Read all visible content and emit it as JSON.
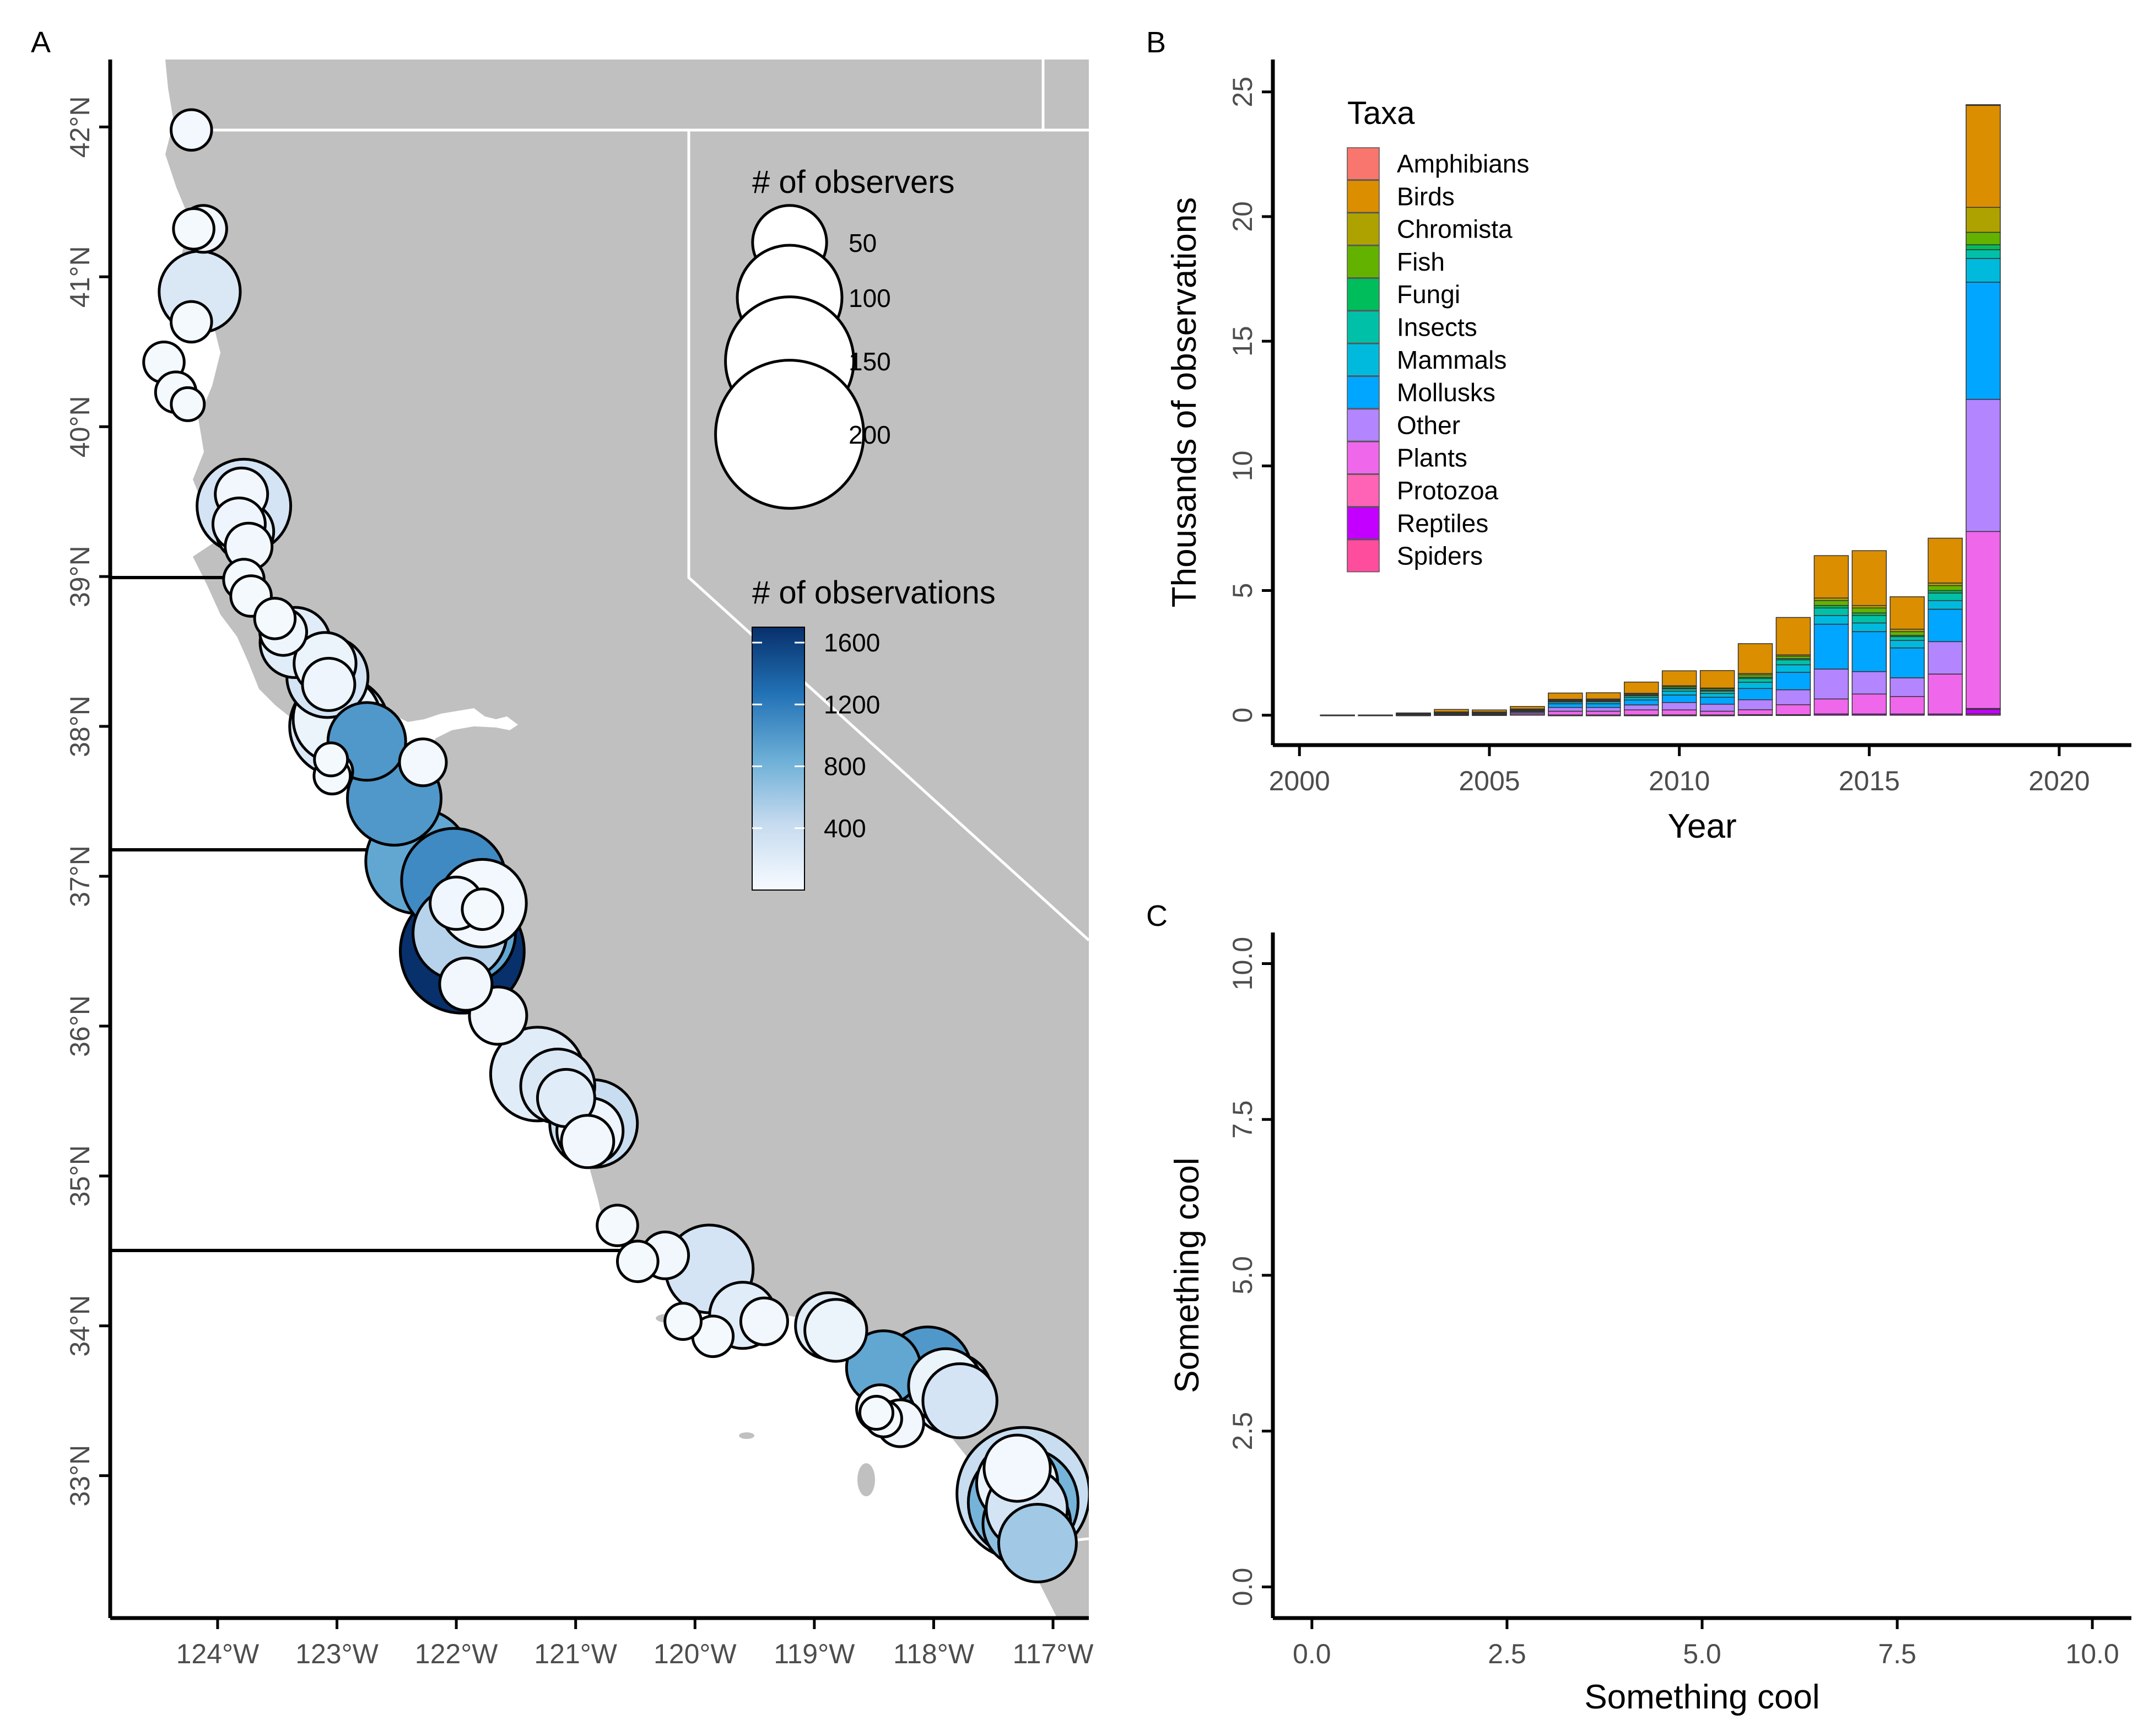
{
  "panel_labels": {
    "a": "A",
    "b": "B",
    "c": "C"
  },
  "colors": {
    "land": "#c0c0c0",
    "border": "#ffffff",
    "axis": "#000000",
    "tick_text": "#4d4d4d",
    "obs_low": "#f5f9fe",
    "obs_mid": "#6baed6",
    "obs_high": "#08306b"
  },
  "map": {
    "lon_ticks": [
      "124°W",
      "123°W",
      "122°W",
      "121°W",
      "120°W",
      "119°W",
      "118°W",
      "117°W"
    ],
    "lat_ticks": [
      "42°N",
      "41°N",
      "40°N",
      "39°N",
      "38°N",
      "37°N",
      "36°N",
      "35°N",
      "34°N",
      "33°N"
    ],
    "lon_range": [
      -124.9,
      -116.7
    ],
    "lat_range": [
      32.05,
      42.45
    ],
    "size_legend": {
      "title": "# of observers",
      "entries": [
        {
          "label": "50",
          "value": 50
        },
        {
          "label": "100",
          "value": 100
        },
        {
          "label": "150",
          "value": 150
        },
        {
          "label": "200",
          "value": 200
        }
      ]
    },
    "color_legend": {
      "title": "# of observations",
      "labels": [
        "1600",
        "1200",
        "800",
        "400"
      ],
      "values": [
        1600,
        1200,
        800,
        400
      ],
      "max": 1700
    },
    "sites": [
      {
        "lon": -124.22,
        "lat": 41.98,
        "obs": 40,
        "n": 15
      },
      {
        "lon": -124.2,
        "lat": 41.32,
        "obs": 30,
        "n": 15
      },
      {
        "lon": -124.12,
        "lat": 41.32,
        "obs": 60,
        "n": 20
      },
      {
        "lon": -124.15,
        "lat": 40.9,
        "obs": 250,
        "n": 60
      },
      {
        "lon": -124.22,
        "lat": 40.7,
        "obs": 30,
        "n": 15
      },
      {
        "lon": -124.45,
        "lat": 40.43,
        "obs": 30,
        "n": 15
      },
      {
        "lon": -124.35,
        "lat": 40.23,
        "obs": 30,
        "n": 15
      },
      {
        "lon": -124.25,
        "lat": 40.15,
        "obs": 30,
        "n": 10
      },
      {
        "lon": -123.8,
        "lat": 39.55,
        "obs": 50,
        "n": 25
      },
      {
        "lon": -123.78,
        "lat": 39.47,
        "obs": 300,
        "n": 80
      },
      {
        "lon": -123.82,
        "lat": 39.35,
        "obs": 80,
        "n": 25
      },
      {
        "lon": -123.77,
        "lat": 39.3,
        "obs": 150,
        "n": 30
      },
      {
        "lon": -123.74,
        "lat": 39.2,
        "obs": 50,
        "n": 20
      },
      {
        "lon": -123.78,
        "lat": 38.98,
        "obs": 30,
        "n": 15
      },
      {
        "lon": -123.72,
        "lat": 38.87,
        "obs": 30,
        "n": 15
      },
      {
        "lon": -123.52,
        "lat": 38.72,
        "obs": 30,
        "n": 15
      },
      {
        "lon": -123.45,
        "lat": 38.63,
        "obs": 80,
        "n": 20
      },
      {
        "lon": -123.35,
        "lat": 38.56,
        "obs": 200,
        "n": 45
      },
      {
        "lon": -123.1,
        "lat": 38.42,
        "obs": 100,
        "n": 35
      },
      {
        "lon": -123.08,
        "lat": 38.33,
        "obs": 300,
        "n": 60
      },
      {
        "lon": -123.07,
        "lat": 38.28,
        "obs": 80,
        "n": 25
      },
      {
        "lon": -123.0,
        "lat": 38.05,
        "obs": 100,
        "n": 70
      },
      {
        "lon": -122.98,
        "lat": 38.0,
        "obs": 250,
        "n": 90
      },
      {
        "lon": -122.75,
        "lat": 37.9,
        "obs": 1000,
        "n": 55
      },
      {
        "lon": -122.28,
        "lat": 37.76,
        "obs": 40,
        "n": 20
      },
      {
        "lon": -123.05,
        "lat": 37.78,
        "obs": 30,
        "n": 10
      },
      {
        "lon": -123.02,
        "lat": 37.7,
        "obs": 30,
        "n": 12
      },
      {
        "lon": -123.04,
        "lat": 37.67,
        "obs": 30,
        "n": 12
      },
      {
        "lon": -122.52,
        "lat": 37.52,
        "obs": 1000,
        "n": 80
      },
      {
        "lon": -122.32,
        "lat": 37.1,
        "obs": 900,
        "n": 100
      },
      {
        "lon": -122.02,
        "lat": 36.97,
        "obs": 1100,
        "n": 100
      },
      {
        "lon": -121.78,
        "lat": 36.82,
        "obs": 40,
        "n": 70
      },
      {
        "lon": -121.78,
        "lat": 36.78,
        "obs": 30,
        "n": 15
      },
      {
        "lon": -122.0,
        "lat": 36.82,
        "obs": 60,
        "n": 25
      },
      {
        "lon": -121.97,
        "lat": 36.62,
        "obs": 500,
        "n": 80
      },
      {
        "lon": -121.92,
        "lat": 36.62,
        "obs": 900,
        "n": 90
      },
      {
        "lon": -121.95,
        "lat": 36.5,
        "obs": 1700,
        "n": 140
      },
      {
        "lon": -121.92,
        "lat": 36.28,
        "obs": 50,
        "n": 25
      },
      {
        "lon": -121.65,
        "lat": 36.07,
        "obs": 50,
        "n": 30
      },
      {
        "lon": -121.32,
        "lat": 35.68,
        "obs": 200,
        "n": 80
      },
      {
        "lon": -121.15,
        "lat": 35.6,
        "obs": 250,
        "n": 50
      },
      {
        "lon": -121.08,
        "lat": 35.52,
        "obs": 200,
        "n": 30
      },
      {
        "lon": -120.85,
        "lat": 35.35,
        "obs": 400,
        "n": 70
      },
      {
        "lon": -120.88,
        "lat": 35.3,
        "obs": 80,
        "n": 40
      },
      {
        "lon": -120.9,
        "lat": 35.23,
        "obs": 50,
        "n": 25
      },
      {
        "lon": -120.65,
        "lat": 34.67,
        "obs": 30,
        "n": 15
      },
      {
        "lon": -120.48,
        "lat": 34.43,
        "obs": 30,
        "n": 15
      },
      {
        "lon": -120.25,
        "lat": 34.47,
        "obs": 50,
        "n": 20
      },
      {
        "lon": -119.88,
        "lat": 34.38,
        "obs": 300,
        "n": 70
      },
      {
        "lon": -119.6,
        "lat": 34.07,
        "obs": 200,
        "n": 40
      },
      {
        "lon": -119.42,
        "lat": 34.03,
        "obs": 50,
        "n": 20
      },
      {
        "lon": -120.1,
        "lat": 34.03,
        "obs": 30,
        "n": 12
      },
      {
        "lon": -119.85,
        "lat": 33.93,
        "obs": 30,
        "n": 15
      },
      {
        "lon": -118.88,
        "lat": 34.0,
        "obs": 200,
        "n": 40
      },
      {
        "lon": -118.82,
        "lat": 33.97,
        "obs": 100,
        "n": 35
      },
      {
        "lon": -118.42,
        "lat": 33.72,
        "obs": 900,
        "n": 50
      },
      {
        "lon": -118.45,
        "lat": 33.45,
        "obs": 30,
        "n": 20
      },
      {
        "lon": -118.42,
        "lat": 33.38,
        "obs": 30,
        "n": 12
      },
      {
        "lon": -118.48,
        "lat": 33.42,
        "obs": 30,
        "n": 10
      },
      {
        "lon": -118.28,
        "lat": 33.35,
        "obs": 50,
        "n": 20
      },
      {
        "lon": -118.05,
        "lat": 33.7,
        "obs": 1000,
        "n": 70
      },
      {
        "lon": -117.9,
        "lat": 33.6,
        "obs": 100,
        "n": 50
      },
      {
        "lon": -117.85,
        "lat": 33.55,
        "obs": 200,
        "n": 60
      },
      {
        "lon": -117.78,
        "lat": 33.5,
        "obs": 300,
        "n": 50
      },
      {
        "lon": -117.3,
        "lat": 33.05,
        "obs": 40,
        "n": 40
      },
      {
        "lon": -117.3,
        "lat": 32.95,
        "obs": 100,
        "n": 60
      },
      {
        "lon": -117.25,
        "lat": 32.88,
        "obs": 400,
        "n": 160
      },
      {
        "lon": -117.25,
        "lat": 32.82,
        "obs": 800,
        "n": 110
      },
      {
        "lon": -117.22,
        "lat": 32.78,
        "obs": 300,
        "n": 60
      },
      {
        "lon": -117.22,
        "lat": 32.68,
        "obs": 700,
        "n": 70
      },
      {
        "lon": -117.13,
        "lat": 32.55,
        "obs": 600,
        "n": 55
      }
    ]
  },
  "chart_data": [
    {
      "type": "bar",
      "stacked": true,
      "title": "",
      "xlabel": "Year",
      "ylabel": "Thousands of observations",
      "xlim": [
        1999.3,
        2021.9
      ],
      "ylim": [
        -1.2,
        26.3
      ],
      "x_ticks": [
        2000,
        2005,
        2010,
        2015,
        2020
      ],
      "x_tick_labels": [
        "2000",
        "2005",
        "2010",
        "2015",
        "2020"
      ],
      "y_ticks": [
        0,
        5,
        10,
        15,
        20,
        25
      ],
      "y_tick_labels": [
        "0",
        "5",
        "10",
        "15",
        "20",
        "25"
      ],
      "legend": {
        "title": "Taxa",
        "position": "top-left"
      },
      "categories": [
        2001,
        2002,
        2003,
        2004,
        2005,
        2006,
        2007,
        2008,
        2009,
        2010,
        2011,
        2012,
        2013,
        2014,
        2015,
        2016,
        2017,
        2018
      ],
      "series": [
        {
          "name": "Amphibians",
          "color": "#F8766D",
          "values": [
            0,
            0,
            0,
            0,
            0,
            0,
            0,
            0,
            0,
            0,
            0,
            0,
            0,
            0,
            0,
            0,
            0,
            0.02
          ]
        },
        {
          "name": "Birds",
          "color": "#DB8E00",
          "values": [
            0.01,
            0.01,
            0.02,
            0.1,
            0.08,
            0.1,
            0.25,
            0.25,
            0.45,
            0.6,
            0.7,
            1.2,
            1.5,
            1.7,
            2.2,
            1.3,
            1.8,
            4.1
          ]
        },
        {
          "name": "Chromista",
          "color": "#AEA200",
          "values": [
            0,
            0,
            0,
            0.01,
            0.01,
            0.01,
            0.02,
            0.02,
            0.02,
            0.03,
            0.03,
            0.05,
            0.05,
            0.1,
            0.1,
            0.1,
            0.1,
            1.0
          ]
        },
        {
          "name": "Fish",
          "color": "#64B200",
          "values": [
            0,
            0,
            0.01,
            0.01,
            0.01,
            0.02,
            0.03,
            0.03,
            0.05,
            0.06,
            0.06,
            0.1,
            0.1,
            0.2,
            0.2,
            0.15,
            0.2,
            0.5
          ]
        },
        {
          "name": "Fungi",
          "color": "#00BD5C",
          "values": [
            0,
            0,
            0,
            0,
            0,
            0.01,
            0.01,
            0.01,
            0.02,
            0.03,
            0.03,
            0.05,
            0.05,
            0.1,
            0.1,
            0.05,
            0.1,
            0.2
          ]
        },
        {
          "name": "Insects",
          "color": "#00C1A7",
          "values": [
            0,
            0,
            0.01,
            0.02,
            0.02,
            0.03,
            0.05,
            0.05,
            0.08,
            0.1,
            0.1,
            0.15,
            0.2,
            0.3,
            0.3,
            0.15,
            0.3,
            0.35
          ]
        },
        {
          "name": "Mammals",
          "color": "#00BADE",
          "values": [
            0,
            0,
            0.01,
            0.02,
            0.02,
            0.03,
            0.07,
            0.08,
            0.1,
            0.15,
            0.15,
            0.25,
            0.3,
            0.35,
            0.35,
            0.3,
            0.35,
            0.95
          ]
        },
        {
          "name": "Mollusks",
          "color": "#00A6FF",
          "values": [
            0,
            0,
            0.01,
            0.02,
            0.02,
            0.04,
            0.15,
            0.15,
            0.2,
            0.3,
            0.28,
            0.45,
            0.7,
            1.8,
            1.6,
            1.2,
            1.3,
            4.7
          ]
        },
        {
          "name": "Other",
          "color": "#B385FF",
          "values": [
            0,
            0,
            0.02,
            0.03,
            0.03,
            0.06,
            0.15,
            0.15,
            0.2,
            0.3,
            0.28,
            0.4,
            0.6,
            1.2,
            0.9,
            0.75,
            1.3,
            5.3
          ]
        },
        {
          "name": "Plants",
          "color": "#EF67EB",
          "values": [
            0,
            0,
            0.01,
            0.02,
            0.02,
            0.05,
            0.15,
            0.15,
            0.2,
            0.2,
            0.15,
            0.2,
            0.4,
            0.6,
            0.8,
            0.7,
            1.6,
            7.1
          ]
        },
        {
          "name": "Protozoa",
          "color": "#FF63B6",
          "values": [
            0,
            0,
            0,
            0,
            0,
            0,
            0,
            0,
            0,
            0,
            0,
            0,
            0,
            0,
            0,
            0,
            0,
            0.02
          ]
        },
        {
          "name": "Reptiles",
          "color": "#c300ff",
          "values": [
            0,
            0,
            0,
            0,
            0,
            0,
            0.01,
            0.01,
            0.01,
            0.01,
            0.01,
            0.02,
            0.02,
            0.05,
            0.05,
            0.05,
            0.05,
            0.2
          ]
        },
        {
          "name": "Spiders",
          "color": "#ff4d9e",
          "values": [
            0,
            0,
            0,
            0,
            0,
            0,
            0,
            0,
            0,
            0,
            0,
            0,
            0,
            0,
            0,
            0,
            0,
            0.05
          ]
        }
      ]
    },
    {
      "type": "scatter",
      "title": "",
      "xlabel": "Something cool",
      "ylabel": "Something cool",
      "xlim": [
        -0.5,
        10.5
      ],
      "ylim": [
        -0.5,
        10.5
      ],
      "x_ticks": [
        0,
        2.5,
        5,
        7.5,
        10
      ],
      "x_tick_labels": [
        "0.0",
        "2.5",
        "5.0",
        "7.5",
        "10.0"
      ],
      "y_ticks": [
        0,
        2.5,
        5,
        7.5,
        10
      ],
      "y_tick_labels": [
        "0.0",
        "2.5",
        "5.0",
        "7.5",
        "10.0"
      ],
      "x": [],
      "y": []
    }
  ]
}
